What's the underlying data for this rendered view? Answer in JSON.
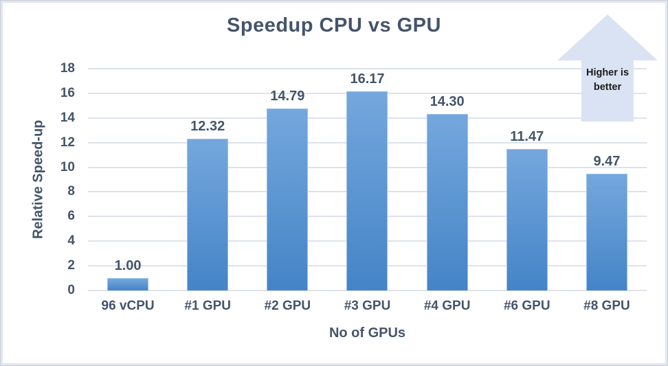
{
  "chart_data": {
    "type": "bar",
    "title": "Speedup CPU vs GPU",
    "xlabel": "No of GPUs",
    "ylabel": "Relative Speed-up",
    "categories": [
      "96 vCPU",
      "#1 GPU",
      "#2 GPU",
      "#3 GPU",
      "#4 GPU",
      "#6 GPU",
      "#8 GPU"
    ],
    "values": [
      1.0,
      12.32,
      14.79,
      16.17,
      14.3,
      11.47,
      9.47
    ],
    "data_labels": [
      "1.00",
      "12.32",
      "14.79",
      "16.17",
      "14.30",
      "11.47",
      "9.47"
    ],
    "ylim": [
      0,
      18
    ],
    "yticks": [
      0,
      2,
      4,
      6,
      8,
      10,
      12,
      14,
      16,
      18
    ],
    "grid": true,
    "legend": false,
    "colors": {
      "bar_gradient_top": "#74a7dd",
      "bar_gradient_bottom": "#4484c7",
      "gridline": "#dde2ec",
      "text": "#44546a"
    }
  },
  "annotation": {
    "line1": "Higher is",
    "line2": "better",
    "arrow_fill": "#dae3f3"
  }
}
